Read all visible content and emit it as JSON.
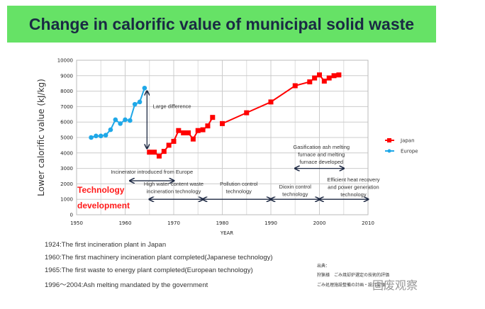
{
  "title": "Change in calorific value of municipal solid waste",
  "chart_data": {
    "type": "line",
    "xlabel": "YEAR",
    "ylabel": "Lower calorific value (kJ/kg)",
    "xlim": [
      1950,
      2010
    ],
    "ylim": [
      0,
      10000
    ],
    "xticks": [
      1950,
      1960,
      1970,
      1980,
      1990,
      2000,
      2010
    ],
    "yticks": [
      0,
      1000,
      2000,
      3000,
      4000,
      5000,
      6000,
      7000,
      8000,
      9000,
      10000
    ],
    "grid": true,
    "legend": "right",
    "series": [
      {
        "name": "Japan",
        "color": "#ff0000",
        "marker": "square",
        "x": [
          1965,
          1966,
          1967,
          1968,
          1969,
          1970,
          1971,
          1972,
          1973,
          1974,
          1975,
          1976,
          1977,
          1978,
          1979,
          1980,
          1985,
          1990,
          1995,
          1998,
          1999,
          2000,
          2001,
          2002,
          2003,
          2004
        ],
        "y": [
          4050,
          4050,
          3800,
          4100,
          4500,
          4750,
          5450,
          5300,
          5300,
          4900,
          5450,
          5500,
          5750,
          6300,
          null,
          5900,
          6600,
          7300,
          8350,
          8600,
          8850,
          9050,
          8650,
          8850,
          9000,
          9050
        ]
      },
      {
        "name": "Europe",
        "color": "#1fa8e8",
        "marker": "circle",
        "x": [
          1953,
          1954,
          1955,
          1956,
          1957,
          1958,
          1959,
          1960,
          1961,
          1962,
          1963,
          1964
        ],
        "y": [
          5000,
          5100,
          5100,
          5150,
          5500,
          6150,
          5900,
          6150,
          6100,
          7150,
          7300,
          8200
        ]
      }
    ],
    "annotations": [
      {
        "text": "Large difference",
        "from": [
          1964.5,
          4300
        ],
        "to": [
          1964.5,
          8000
        ]
      },
      {
        "text": "Incinerator introduced from Europe",
        "from": [
          1961,
          2200
        ],
        "to": [
          1970,
          2200
        ]
      },
      {
        "text": "High water content waste incineration technology",
        "from": [
          1965,
          1000
        ],
        "to": [
          1976,
          1000
        ]
      },
      {
        "text": "Pollution control technology",
        "from": [
          1976,
          1000
        ],
        "to": [
          1990,
          1000
        ]
      },
      {
        "text": "Dioxin control technology",
        "from": [
          1990,
          1000
        ],
        "to": [
          2000,
          1000
        ]
      },
      {
        "text": "Efficient heat recovery and power generation technology",
        "from": [
          2000,
          1000
        ],
        "to": [
          2010,
          1000
        ]
      },
      {
        "text": "Gasification ash melting furnace and melting furnace developed",
        "from": [
          1995,
          3000
        ],
        "to": [
          2005,
          3000
        ]
      }
    ],
    "overlay_label": "Technology development"
  },
  "notes": [
    "1924:The first incineration plant in Japan",
    "1960:The first machinery incineration plant completed(Japanese technology)",
    "1965:The first waste to energy plant completed(European technology)",
    "1996～2004:Ash melting mandated by the government"
  ],
  "source": [
    "出典：",
    "狩猟様　ごみ焼却炉選定の技術的評価",
    "ごみ処理施設整備の計画・設計要領"
  ],
  "watermark": "固废观察"
}
